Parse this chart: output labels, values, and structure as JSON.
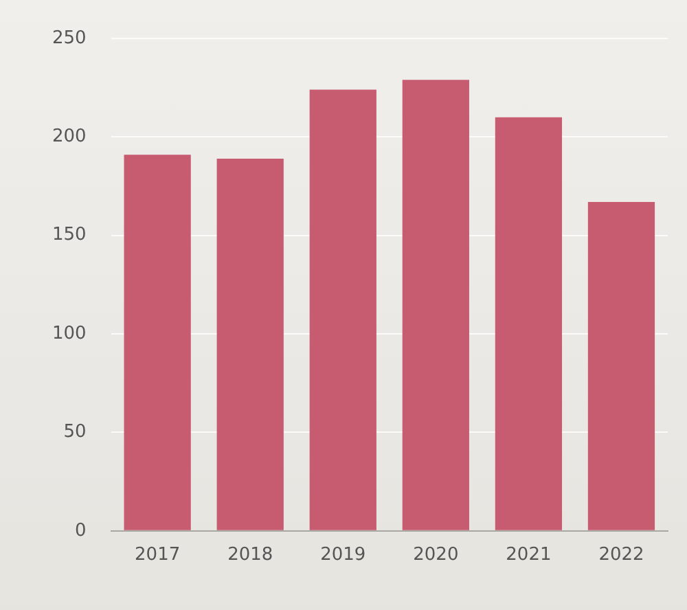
{
  "chart_data": {
    "type": "bar",
    "categories": [
      "2017",
      "2018",
      "2019",
      "2020",
      "2021",
      "2022"
    ],
    "values": [
      191,
      189,
      224,
      229,
      210,
      167
    ],
    "color": "#c75b70",
    "ylim": [
      0,
      250
    ],
    "yticks": [
      0,
      50,
      100,
      150,
      200,
      250
    ],
    "grid": "y"
  }
}
